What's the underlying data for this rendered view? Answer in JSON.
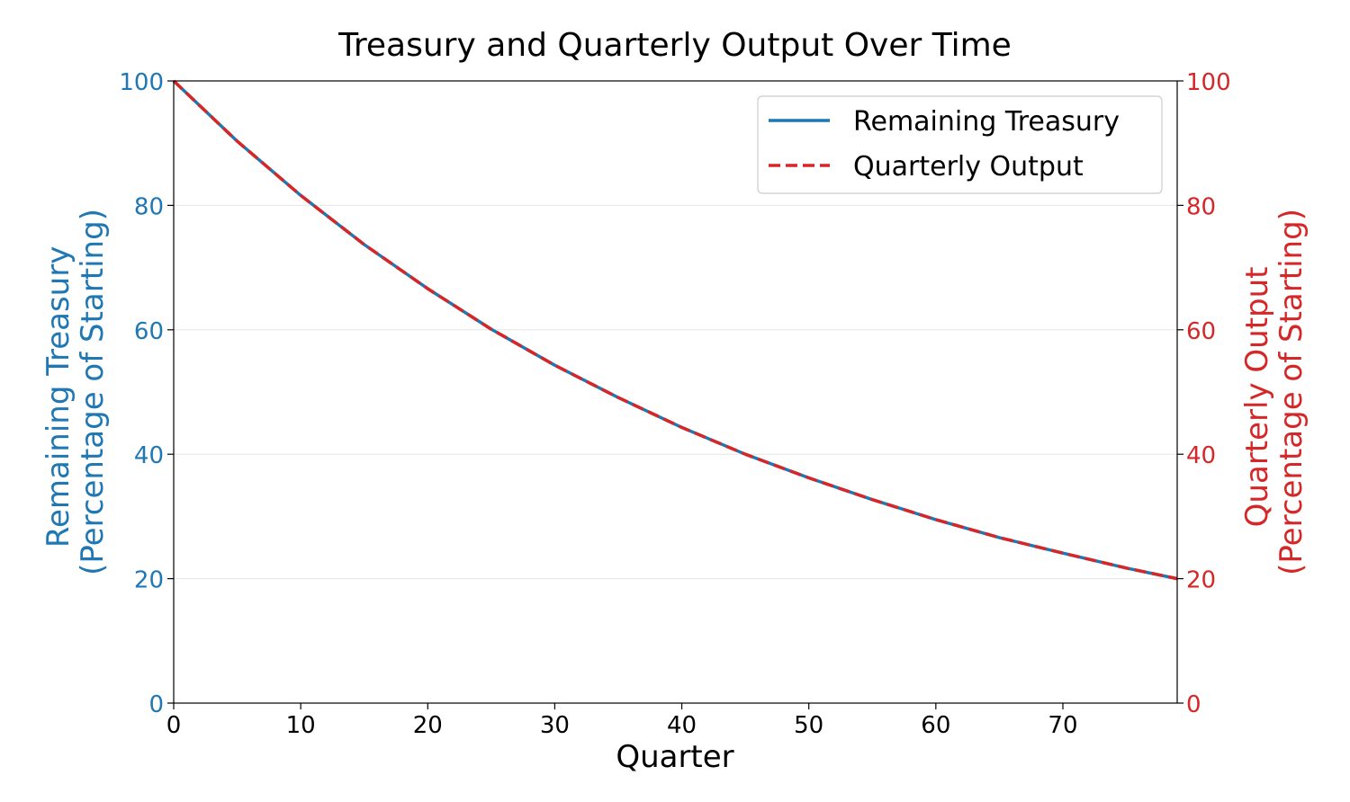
{
  "colors": {
    "left_axis": "#1f77b4",
    "right_axis": "#d62728",
    "grid": "#e6e6e6",
    "axis": "#000000"
  },
  "chart_data": {
    "type": "line",
    "title": "Treasury and Quarterly Output Over Time",
    "xlabel": "Quarter",
    "ylabel_left": [
      "Remaining Treasury",
      "(Percentage of Starting)"
    ],
    "ylabel_right": [
      "Quarterly Output",
      "(Percentage of Starting)"
    ],
    "xlim": [
      0,
      79
    ],
    "ylim_left": [
      0,
      100
    ],
    "ylim_right": [
      0,
      100
    ],
    "x_ticks": [
      "0",
      "10",
      "20",
      "30",
      "40",
      "50",
      "60",
      "70"
    ],
    "y_ticks_left": [
      "0",
      "20",
      "40",
      "60",
      "80",
      "100"
    ],
    "y_ticks_right": [
      "0",
      "20",
      "40",
      "60",
      "80",
      "100"
    ],
    "grid": "horizontal",
    "legend_position": "top-right",
    "x": [
      0,
      5,
      10,
      15,
      20,
      25,
      30,
      35,
      40,
      45,
      50,
      55,
      60,
      65,
      70,
      75,
      79
    ],
    "series": [
      {
        "name": "Remaining Treasury",
        "axis": "left",
        "style": "solid",
        "color": "#1f77b4",
        "values": [
          100,
          90.3,
          81.6,
          73.7,
          66.6,
          60.1,
          54.3,
          49.1,
          44.3,
          40.0,
          36.2,
          32.7,
          29.5,
          26.6,
          24.1,
          21.7,
          20.0
        ]
      },
      {
        "name": "Quarterly Output",
        "axis": "right",
        "style": "dashed",
        "color": "#d62728",
        "values": [
          100,
          90.3,
          81.6,
          73.7,
          66.6,
          60.1,
          54.3,
          49.1,
          44.3,
          40.0,
          36.2,
          32.7,
          29.5,
          26.6,
          24.1,
          21.7,
          20.0
        ]
      }
    ]
  }
}
